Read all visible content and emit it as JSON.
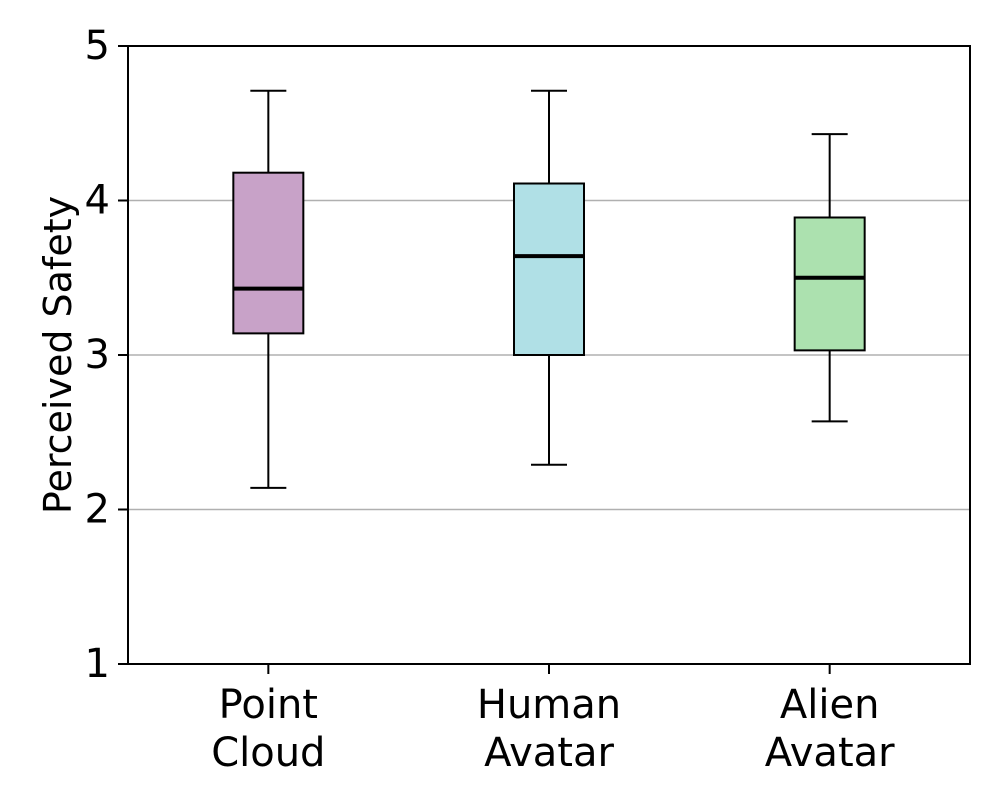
{
  "chart_data": {
    "type": "box",
    "title": "",
    "xlabel": "",
    "ylabel": "Perceived Safety",
    "ylim": [
      1,
      5
    ],
    "yticks": [
      1,
      2,
      3,
      4,
      5
    ],
    "grid": "y",
    "categories": [
      {
        "lines": [
          "Point",
          "Cloud"
        ]
      },
      {
        "lines": [
          "Human",
          "Avatar"
        ]
      },
      {
        "lines": [
          "Alien",
          "Avatar"
        ]
      }
    ],
    "boxes": [
      {
        "name": "Point Cloud",
        "whisker_low": 2.14,
        "q1": 3.14,
        "median": 3.43,
        "q3": 4.18,
        "whisker_high": 4.71,
        "color": "#c8a2c8"
      },
      {
        "name": "Human Avatar",
        "whisker_low": 2.29,
        "q1": 3.0,
        "median": 3.64,
        "q3": 4.11,
        "whisker_high": 4.71,
        "color": "#b0e0e6"
      },
      {
        "name": "Alien Avatar",
        "whisker_low": 2.57,
        "q1": 3.03,
        "median": 3.5,
        "q3": 3.89,
        "whisker_high": 4.43,
        "color": "#ace1af"
      }
    ]
  }
}
